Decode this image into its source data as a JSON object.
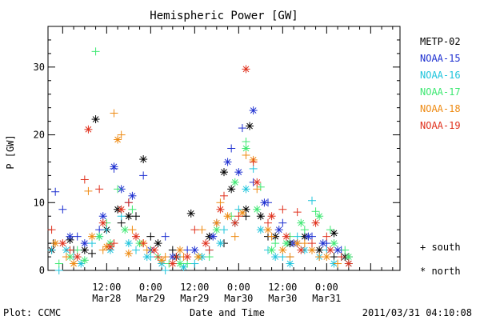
{
  "colors": {
    "axis": "#000000",
    "METP-02": "#000000",
    "NOAA-15": "#1d2fd0",
    "NOAA-16": "#1fc4dc",
    "NOAA-17": "#3ee872",
    "NOAA-18": "#ee8a12",
    "NOAA-19": "#e0321e"
  },
  "footer": {
    "left": "Plot: CCMC",
    "center": "Date and Time",
    "right": "2011/03/31 04:10:08"
  },
  "chart_data": {
    "type": "scatter",
    "title": "Hemispheric Power [GW]",
    "xlabel": "Date and Time",
    "ylabel": "P [GW]",
    "ylim": [
      0,
      36
    ],
    "xlim": [
      -4,
      92
    ],
    "x_units": "hours since 2011-03-28 00:00 UT",
    "yticks": [
      0,
      10,
      20,
      30
    ],
    "xticks": [
      {
        "x": 12,
        "time": "12:00",
        "date": "Mar28"
      },
      {
        "x": 24,
        "time": "0:00",
        "date": "Mar29"
      },
      {
        "x": 36,
        "time": "12:00",
        "date": "Mar29"
      },
      {
        "x": 48,
        "time": "0:00",
        "date": "Mar30"
      },
      {
        "x": 60,
        "time": "12:00",
        "date": "Mar30"
      },
      {
        "x": 72,
        "time": "0:00",
        "date": "Mar31"
      }
    ],
    "legend_position": "right",
    "marker_legend": [
      {
        "symbol": "+",
        "label": "south"
      },
      {
        "symbol": "*",
        "label": "north"
      }
    ],
    "series": [
      {
        "name": "METP-02",
        "south": [
          [
            -2.5,
            4
          ],
          [
            3,
            3
          ],
          [
            8,
            2.5
          ],
          [
            16,
            7
          ],
          [
            20,
            8
          ],
          [
            24,
            5
          ],
          [
            30,
            3
          ],
          [
            38,
            2
          ],
          [
            44,
            4
          ],
          [
            50,
            8
          ],
          [
            56,
            5
          ],
          [
            62,
            2
          ],
          [
            68,
            3
          ],
          [
            74,
            2
          ],
          [
            78,
            2
          ]
        ],
        "north": [
          [
            -3,
            3
          ],
          [
            2,
            4.5
          ],
          [
            6,
            3
          ],
          [
            9,
            22.3
          ],
          [
            12,
            6
          ],
          [
            15,
            9
          ],
          [
            18,
            8
          ],
          [
            22,
            16.4
          ],
          [
            26,
            4
          ],
          [
            31,
            2
          ],
          [
            35,
            8.4
          ],
          [
            40,
            5
          ],
          [
            44,
            14.5
          ],
          [
            46,
            12
          ],
          [
            50,
            9
          ],
          [
            51,
            21.3
          ],
          [
            54,
            8
          ],
          [
            58,
            5
          ],
          [
            62,
            4
          ],
          [
            66,
            5
          ],
          [
            70,
            3
          ],
          [
            74,
            5.5
          ],
          [
            77,
            2
          ]
        ]
      },
      {
        "name": "NOAA-15",
        "south": [
          [
            -2,
            11.6
          ],
          [
            0,
            9
          ],
          [
            4,
            5
          ],
          [
            10,
            6
          ],
          [
            14,
            15
          ],
          [
            18,
            10
          ],
          [
            22,
            14
          ],
          [
            28,
            5
          ],
          [
            34,
            3
          ],
          [
            42,
            7
          ],
          [
            46,
            18
          ],
          [
            49,
            21
          ],
          [
            52,
            13
          ],
          [
            56,
            10
          ],
          [
            60,
            7
          ],
          [
            64,
            4
          ],
          [
            68,
            5
          ],
          [
            72,
            4
          ],
          [
            76,
            3
          ]
        ],
        "north": [
          [
            2,
            5
          ],
          [
            6,
            4
          ],
          [
            11,
            8
          ],
          [
            14,
            15.3
          ],
          [
            16,
            12
          ],
          [
            19,
            11
          ],
          [
            24,
            3
          ],
          [
            30,
            2
          ],
          [
            36,
            3
          ],
          [
            41,
            5
          ],
          [
            45,
            16
          ],
          [
            48,
            14.5
          ],
          [
            52,
            23.6
          ],
          [
            55,
            10
          ],
          [
            59,
            6
          ],
          [
            63,
            4
          ],
          [
            67,
            5
          ],
          [
            71,
            4
          ],
          [
            75,
            3
          ]
        ]
      },
      {
        "name": "NOAA-16",
        "south": [
          [
            -3,
            3
          ],
          [
            -1,
            0
          ],
          [
            3,
            2
          ],
          [
            8,
            4
          ],
          [
            12,
            6
          ],
          [
            16,
            8
          ],
          [
            20,
            3
          ],
          [
            24,
            2
          ],
          [
            28,
            0
          ],
          [
            32,
            2
          ],
          [
            36,
            1
          ],
          [
            40,
            3
          ],
          [
            44,
            6
          ],
          [
            48,
            9
          ],
          [
            52,
            15
          ],
          [
            56,
            3
          ],
          [
            60,
            2
          ],
          [
            64,
            5
          ],
          [
            68,
            10.3
          ],
          [
            72,
            3
          ],
          [
            76,
            2
          ]
        ],
        "north": [
          [
            1,
            3
          ],
          [
            5,
            1
          ],
          [
            10,
            5
          ],
          [
            13,
            3
          ],
          [
            18,
            4
          ],
          [
            23,
            2
          ],
          [
            27,
            1
          ],
          [
            33,
            0.5
          ],
          [
            38,
            2
          ],
          [
            43,
            4
          ],
          [
            47,
            7
          ],
          [
            50,
            12
          ],
          [
            54,
            6
          ],
          [
            58,
            2
          ],
          [
            62,
            1
          ],
          [
            66,
            3
          ],
          [
            70,
            2
          ],
          [
            74,
            1
          ],
          [
            78,
            1
          ]
        ]
      },
      {
        "name": "NOAA-17",
        "south": [
          [
            -1,
            1
          ],
          [
            4,
            3
          ],
          [
            9,
            32.3
          ],
          [
            12,
            7
          ],
          [
            15,
            12
          ],
          [
            19,
            9
          ],
          [
            24,
            3
          ],
          [
            29,
            1
          ],
          [
            34,
            1
          ],
          [
            40,
            2
          ],
          [
            46,
            8
          ],
          [
            50,
            19
          ],
          [
            54,
            12.3
          ],
          [
            58,
            4
          ],
          [
            62,
            5
          ],
          [
            66,
            6
          ],
          [
            69,
            8.7
          ],
          [
            73,
            6
          ],
          [
            77,
            3
          ]
        ],
        "north": [
          [
            2,
            2
          ],
          [
            6,
            1.5
          ],
          [
            10,
            5
          ],
          [
            13,
            4
          ],
          [
            17,
            6
          ],
          [
            21,
            4
          ],
          [
            26,
            2
          ],
          [
            32,
            1
          ],
          [
            37,
            2
          ],
          [
            42,
            6
          ],
          [
            47,
            13
          ],
          [
            50,
            18
          ],
          [
            53,
            9
          ],
          [
            57,
            3
          ],
          [
            61,
            4
          ],
          [
            65,
            7
          ],
          [
            70,
            8
          ],
          [
            74,
            4
          ],
          [
            78,
            2
          ]
        ]
      },
      {
        "name": "NOAA-18",
        "south": [
          [
            1,
            2
          ],
          [
            7,
            11.7
          ],
          [
            11,
            3
          ],
          [
            14,
            23.2
          ],
          [
            16,
            20
          ],
          [
            19,
            6
          ],
          [
            23,
            3
          ],
          [
            28,
            2
          ],
          [
            33,
            2
          ],
          [
            38,
            6
          ],
          [
            43,
            10
          ],
          [
            47,
            5
          ],
          [
            50,
            17
          ],
          [
            53,
            12
          ],
          [
            57,
            5
          ],
          [
            62,
            2
          ],
          [
            66,
            4
          ],
          [
            70,
            2
          ],
          [
            75,
            1
          ]
        ],
        "north": [
          [
            -2,
            4
          ],
          [
            3,
            1
          ],
          [
            8,
            5
          ],
          [
            12,
            3.5
          ],
          [
            15,
            19.3
          ],
          [
            18,
            2.5
          ],
          [
            22,
            4
          ],
          [
            27,
            1.5
          ],
          [
            32,
            3
          ],
          [
            37,
            2
          ],
          [
            42,
            7
          ],
          [
            45,
            8
          ],
          [
            49,
            8.5
          ],
          [
            52,
            16.3
          ],
          [
            56,
            6
          ],
          [
            60,
            3
          ],
          [
            64,
            4
          ],
          [
            68,
            3
          ],
          [
            72,
            2
          ]
        ]
      },
      {
        "name": "NOAA-19",
        "south": [
          [
            -3,
            6
          ],
          [
            2,
            3
          ],
          [
            6,
            13.4
          ],
          [
            10,
            12
          ],
          [
            14,
            4
          ],
          [
            18,
            10
          ],
          [
            22,
            4
          ],
          [
            26,
            2
          ],
          [
            31,
            2
          ],
          [
            36,
            6
          ],
          [
            40,
            3
          ],
          [
            44,
            11
          ],
          [
            48,
            8
          ],
          [
            52,
            16
          ],
          [
            56,
            7
          ],
          [
            60,
            9
          ],
          [
            64,
            8.6
          ],
          [
            68,
            4
          ],
          [
            72,
            5
          ],
          [
            76,
            2
          ]
        ],
        "north": [
          [
            0,
            4
          ],
          [
            4,
            2
          ],
          [
            7,
            20.8
          ],
          [
            11,
            7
          ],
          [
            13,
            3.5
          ],
          [
            16,
            9
          ],
          [
            20,
            5
          ],
          [
            25,
            3
          ],
          [
            30,
            1
          ],
          [
            34,
            2
          ],
          [
            39,
            4
          ],
          [
            43,
            9
          ],
          [
            47,
            7
          ],
          [
            50,
            29.7
          ],
          [
            53,
            13
          ],
          [
            57,
            8
          ],
          [
            61,
            5
          ],
          [
            65,
            3
          ],
          [
            69,
            7
          ],
          [
            73,
            3
          ],
          [
            78,
            1
          ]
        ]
      }
    ]
  }
}
